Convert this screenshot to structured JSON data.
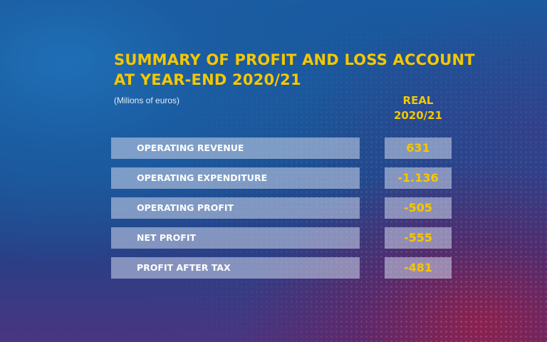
{
  "chart_data": {
    "type": "table",
    "title_lines": [
      "SUMMARY OF PROFIT AND LOSS ACCOUNT",
      "AT YEAR-END 2020/21"
    ],
    "unit_note": "(Milions of euros)",
    "column_header": [
      "REAL",
      "2020/21"
    ],
    "rows": [
      {
        "label": "OPERATING REVENUE",
        "value": "631"
      },
      {
        "label": "OPERATING EXPENDITURE",
        "value": "-1.136"
      },
      {
        "label": "OPERATING PROFIT",
        "value": "-505"
      },
      {
        "label": "NET PROFIT",
        "value": "-555"
      },
      {
        "label": "PROFIT AFTER TAX",
        "value": "-481"
      }
    ]
  },
  "colors": {
    "accent": "#f5c700",
    "row_fill": "#cdd7eb",
    "background_blue": "#1b5da2",
    "background_red": "#961e46"
  }
}
